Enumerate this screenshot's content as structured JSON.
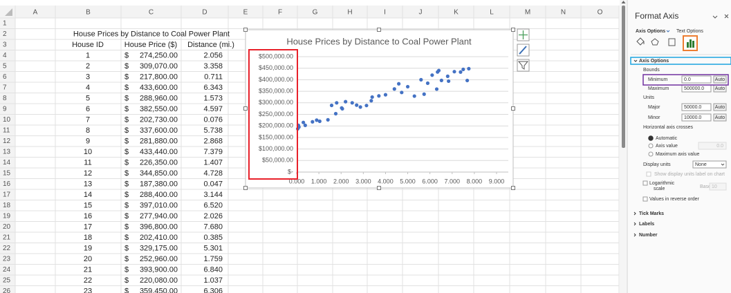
{
  "sheet": {
    "columns": [
      "A",
      "B",
      "C",
      "D",
      "E",
      "F",
      "G",
      "H",
      "I",
      "J",
      "K",
      "L",
      "M",
      "N",
      "O"
    ],
    "row_numbers": [
      1,
      2,
      3,
      4,
      5,
      6,
      7,
      8,
      9,
      10,
      11,
      12,
      13,
      14,
      15,
      16,
      17,
      18,
      19,
      20,
      21,
      22,
      23,
      24,
      25,
      26
    ],
    "title": "House Prices by Distance to Coal Power Plant",
    "headers": [
      "House ID",
      "House Price ($)",
      "Distance (mi.)"
    ],
    "rows": [
      [
        1,
        "$",
        "274,250.00",
        "2.056"
      ],
      [
        2,
        "$",
        "309,070.00",
        "3.358"
      ],
      [
        3,
        "$",
        "217,800.00",
        "0.711"
      ],
      [
        4,
        "$",
        "433,600.00",
        "6.343"
      ],
      [
        5,
        "$",
        "288,960.00",
        "1.573"
      ],
      [
        6,
        "$",
        "382,550.00",
        "4.597"
      ],
      [
        7,
        "$",
        "202,730.00",
        "0.076"
      ],
      [
        8,
        "$",
        "337,600.00",
        "5.738"
      ],
      [
        9,
        "$",
        "281,880.00",
        "2.868"
      ],
      [
        10,
        "$",
        "433,440.00",
        "7.379"
      ],
      [
        11,
        "$",
        "226,350.00",
        "1.407"
      ],
      [
        12,
        "$",
        "344,850.00",
        "4.728"
      ],
      [
        13,
        "$",
        "187,380.00",
        "0.047"
      ],
      [
        14,
        "$",
        "288,400.00",
        "3.144"
      ],
      [
        15,
        "$",
        "397,010.00",
        "6.520"
      ],
      [
        16,
        "$",
        "277,940.00",
        "2.026"
      ],
      [
        17,
        "$",
        "396,800.00",
        "7.680"
      ],
      [
        18,
        "$",
        "202,410.00",
        "0.385"
      ],
      [
        19,
        "$",
        "329,175.00",
        "5.301"
      ],
      [
        20,
        "$",
        "252,960.00",
        "1.759"
      ],
      [
        21,
        "$",
        "393,900.00",
        "6.840"
      ],
      [
        22,
        "$",
        "220,080.00",
        "1.037"
      ],
      [
        23,
        "$",
        "359,450.00",
        "6.306"
      ]
    ]
  },
  "chart_data": {
    "type": "scatter",
    "title": "House Prices by Distance to Coal Power Plant",
    "x": [
      2.056,
      3.358,
      0.711,
      6.343,
      1.573,
      4.597,
      0.076,
      5.738,
      2.868,
      7.379,
      1.407,
      4.728,
      0.047,
      3.144,
      6.52,
      2.026,
      7.68,
      0.385,
      5.301,
      1.759,
      6.84,
      1.037,
      6.306,
      6.1,
      7.1,
      7.5,
      7.75,
      5.6,
      6.8,
      5.0,
      4.4,
      3.7,
      3.4,
      2.2,
      2.5,
      1.8,
      0.9,
      0.3,
      0.1,
      6.4,
      5.9,
      4.0,
      2.7
    ],
    "values": [
      274250,
      309070,
      217800,
      433600,
      288960,
      382550,
      202730,
      337600,
      281880,
      433440,
      226350,
      344850,
      187380,
      288400,
      397010,
      277940,
      396800,
      202410,
      329175,
      252960,
      393900,
      220080,
      359450,
      420000,
      435000,
      445000,
      448000,
      400000,
      415000,
      370000,
      360000,
      330000,
      325000,
      305000,
      300000,
      300000,
      225000,
      215000,
      195000,
      440000,
      385000,
      335000,
      290000
    ],
    "color": "#4472c4",
    "xlim": [
      0,
      9
    ],
    "ylim": [
      0,
      500000
    ],
    "xticks": [
      {
        "value": 0,
        "label": "0.000"
      },
      {
        "value": 1,
        "label": "1.000"
      },
      {
        "value": 2,
        "label": "2.000"
      },
      {
        "value": 3,
        "label": "3.000"
      },
      {
        "value": 4,
        "label": "4.000"
      },
      {
        "value": 5,
        "label": "5.000"
      },
      {
        "value": 6,
        "label": "6.000"
      },
      {
        "value": 7,
        "label": "7.000"
      },
      {
        "value": 8,
        "label": "8.000"
      },
      {
        "value": 9,
        "label": "9.000"
      }
    ],
    "yticks": [
      {
        "value": 0,
        "label": "$-"
      },
      {
        "value": 50000,
        "label": "$50,000.00"
      },
      {
        "value": 100000,
        "label": "$100,000.00"
      },
      {
        "value": 150000,
        "label": "$150,000.00"
      },
      {
        "value": 200000,
        "label": "$200,000.00"
      },
      {
        "value": 250000,
        "label": "$250,000.00"
      },
      {
        "value": 300000,
        "label": "$300,000.00"
      },
      {
        "value": 350000,
        "label": "$350,000.00"
      },
      {
        "value": 400000,
        "label": "$400,000.00"
      },
      {
        "value": 450000,
        "label": "$450,000.00"
      },
      {
        "value": 500000,
        "label": "$500,000.00"
      }
    ],
    "grid": true
  },
  "pane": {
    "title": "Format Axis",
    "tabs": [
      "Axis Options",
      "Text Options"
    ],
    "section": "Axis Options",
    "bounds_label": "Bounds",
    "fields": [
      {
        "label": "Minimum",
        "value": "0.0",
        "button": "Auto"
      },
      {
        "label": "Maximum",
        "value": "500000.0",
        "button": "Auto"
      },
      {
        "label": "Major",
        "value": "50000.0",
        "button": "Auto"
      },
      {
        "label": "Minor",
        "value": "10000.0",
        "button": "Auto"
      }
    ],
    "units_label": "Units",
    "crosses_label": "Horizontal axis crosses",
    "crosses_options": [
      "Automatic",
      "Axis value",
      "Maximum axis value"
    ],
    "axis_value": "0.0",
    "display_units_label": "Display units",
    "display_units": "None",
    "show_units_label": "Show display units label on chart",
    "log_label": [
      "Logarithmic",
      "scale"
    ],
    "base_label": "Base",
    "base": "10",
    "reverse_label": "Values in reverse order",
    "collapsed": [
      "Tick Marks",
      "Labels",
      "Number"
    ]
  }
}
